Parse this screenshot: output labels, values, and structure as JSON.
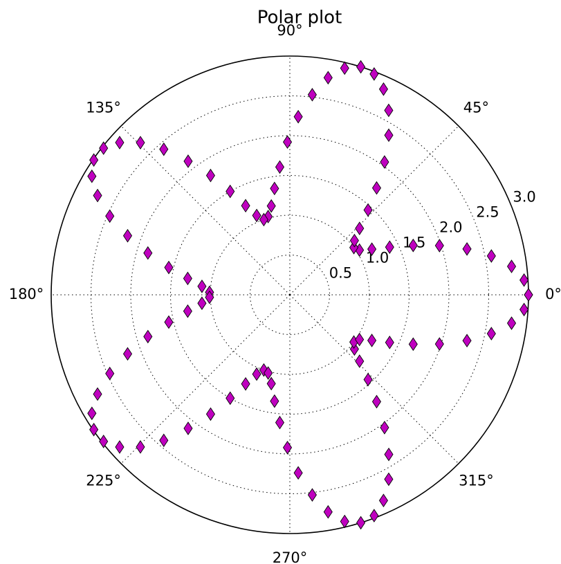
{
  "chart_data": {
    "type": "polar",
    "title": "Polar plot",
    "theta": [
      0,
      3.6,
      7.3,
      10.9,
      14.5,
      18.2,
      21.8,
      25.5,
      29.1,
      32.7,
      36.4,
      40.0,
      43.6,
      47.3,
      50.9,
      54.5,
      58.2,
      61.8,
      65.5,
      69.1,
      72.7,
      76.4,
      80.0,
      83.6,
      87.3,
      90.9,
      94.5,
      98.2,
      101.8,
      105.5,
      109.1,
      112.7,
      116.4,
      120.0,
      123.6,
      127.3,
      130.9,
      134.5,
      138.2,
      141.8,
      145.5,
      149.1,
      152.7,
      156.4,
      160.0,
      163.6,
      167.3,
      170.9,
      174.5,
      178.2,
      181.8,
      185.5,
      189.1,
      192.7,
      196.4,
      200.0,
      203.6,
      207.3,
      210.9,
      214.5,
      218.2,
      221.8,
      225.5,
      229.1,
      232.7,
      236.4,
      240.0,
      243.6,
      247.3,
      250.9,
      254.5,
      258.2,
      261.8,
      265.5,
      269.1,
      272.7,
      276.4,
      280.0,
      283.6,
      287.3,
      290.9,
      294.5,
      298.2,
      301.8,
      305.5,
      309.1,
      312.7,
      316.4,
      320.0,
      323.6,
      327.3,
      330.9,
      334.5,
      338.2,
      341.8,
      345.5,
      349.1,
      352.7,
      356.4,
      360.0
    ],
    "r": [
      3.0,
      2.95,
      2.81,
      2.58,
      2.3,
      1.98,
      1.67,
      1.39,
      1.18,
      1.04,
      1.0,
      1.06,
      1.21,
      1.45,
      1.73,
      2.05,
      2.36,
      2.63,
      2.84,
      2.97,
      3.0,
      2.93,
      2.77,
      2.53,
      2.24,
      1.92,
      1.61,
      1.35,
      1.14,
      1.02,
      1.0,
      1.08,
      1.25,
      1.5,
      1.8,
      2.11,
      2.42,
      2.68,
      2.87,
      2.98,
      2.99,
      2.9,
      2.72,
      2.47,
      2.17,
      1.86,
      1.56,
      1.3,
      1.11,
      1.01,
      1.01,
      1.11,
      1.3,
      1.56,
      1.86,
      2.17,
      2.47,
      2.72,
      2.9,
      2.99,
      2.98,
      2.87,
      2.68,
      2.42,
      2.11,
      1.8,
      1.5,
      1.25,
      1.08,
      1.0,
      1.02,
      1.14,
      1.35,
      1.61,
      1.92,
      2.24,
      2.53,
      2.77,
      2.93,
      3.0,
      2.97,
      2.84,
      2.63,
      2.36,
      2.05,
      1.73,
      1.45,
      1.21,
      1.06,
      1.0,
      1.04,
      1.18,
      1.39,
      1.67,
      1.98,
      2.3,
      2.58,
      2.81,
      2.95,
      3.0
    ],
    "color": "#bf00bf",
    "rlim": [
      0,
      3
    ],
    "rticks": [
      0.5,
      {
        "value": 1,
        "label": "1.0"
      },
      1.5,
      {
        "value": 2,
        "label": "2.0"
      },
      2.5,
      {
        "value": 3,
        "label": "3.0"
      }
    ],
    "thetaticks": [
      {
        "value": 0,
        "label": "0°"
      },
      {
        "value": 45,
        "label": "45°"
      },
      {
        "value": 90,
        "label": "90°"
      },
      {
        "value": 135,
        "label": "135°"
      },
      {
        "value": 180,
        "label": "180°"
      },
      {
        "value": 225,
        "label": "225°"
      },
      {
        "value": 270,
        "label": "270°"
      },
      {
        "value": 315,
        "label": "315°"
      }
    ],
    "grid": true
  }
}
